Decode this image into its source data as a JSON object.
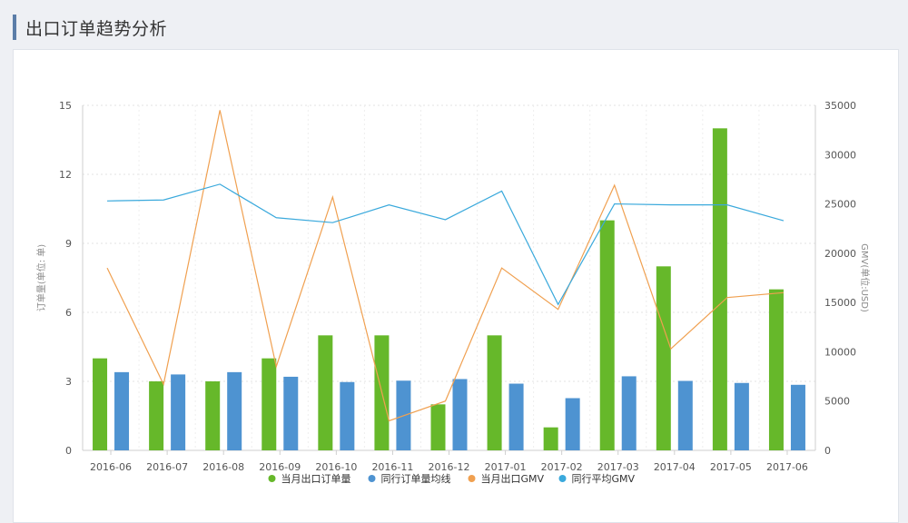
{
  "page": {
    "title": "出口订单趋势分析"
  },
  "chart_data": {
    "type": "bar",
    "categories": [
      "2016-06",
      "2016-07",
      "2016-08",
      "2016-09",
      "2016-10",
      "2016-11",
      "2016-12",
      "2017-01",
      "2017-02",
      "2017-03",
      "2017-04",
      "2017-05",
      "2017-06"
    ],
    "ylabel_left": "订单量(单位: 单)",
    "ylabel_right": "GMV(单位:USD)",
    "ylim_left": [
      0,
      15
    ],
    "ylim_right": [
      0,
      35000
    ],
    "yticks_left": [
      0,
      3,
      6,
      9,
      12,
      15
    ],
    "yticks_right": [
      0,
      5000,
      10000,
      15000,
      20000,
      25000,
      30000,
      35000
    ],
    "grid": true,
    "legend_position": "bottom",
    "series": [
      {
        "name": "当月出口订单量",
        "type": "bar",
        "axis": "left",
        "color": "#66b82a",
        "values": [
          4,
          3,
          3,
          4,
          5,
          5,
          2,
          5,
          1,
          10,
          8,
          14,
          7
        ]
      },
      {
        "name": "同行订单量均线",
        "type": "bar",
        "axis": "left",
        "color": "#4e93d1",
        "values": [
          3.4,
          3.3,
          3.4,
          3.2,
          2.97,
          3.03,
          3.1,
          2.9,
          2.27,
          3.22,
          3.02,
          2.93,
          2.85
        ]
      },
      {
        "name": "当月出口GMV",
        "type": "line",
        "axis": "right",
        "color": "#f0a050",
        "values": [
          18500,
          6700,
          34500,
          8500,
          25700,
          3000,
          5000,
          18500,
          14300,
          26900,
          10300,
          15500,
          16000
        ]
      },
      {
        "name": "同行平均GMV",
        "type": "line",
        "axis": "right",
        "color": "#3aa9dc",
        "values": [
          25300,
          25400,
          27000,
          23600,
          23100,
          24900,
          23400,
          26300,
          14800,
          25000,
          24900,
          24900,
          23300
        ]
      }
    ]
  }
}
